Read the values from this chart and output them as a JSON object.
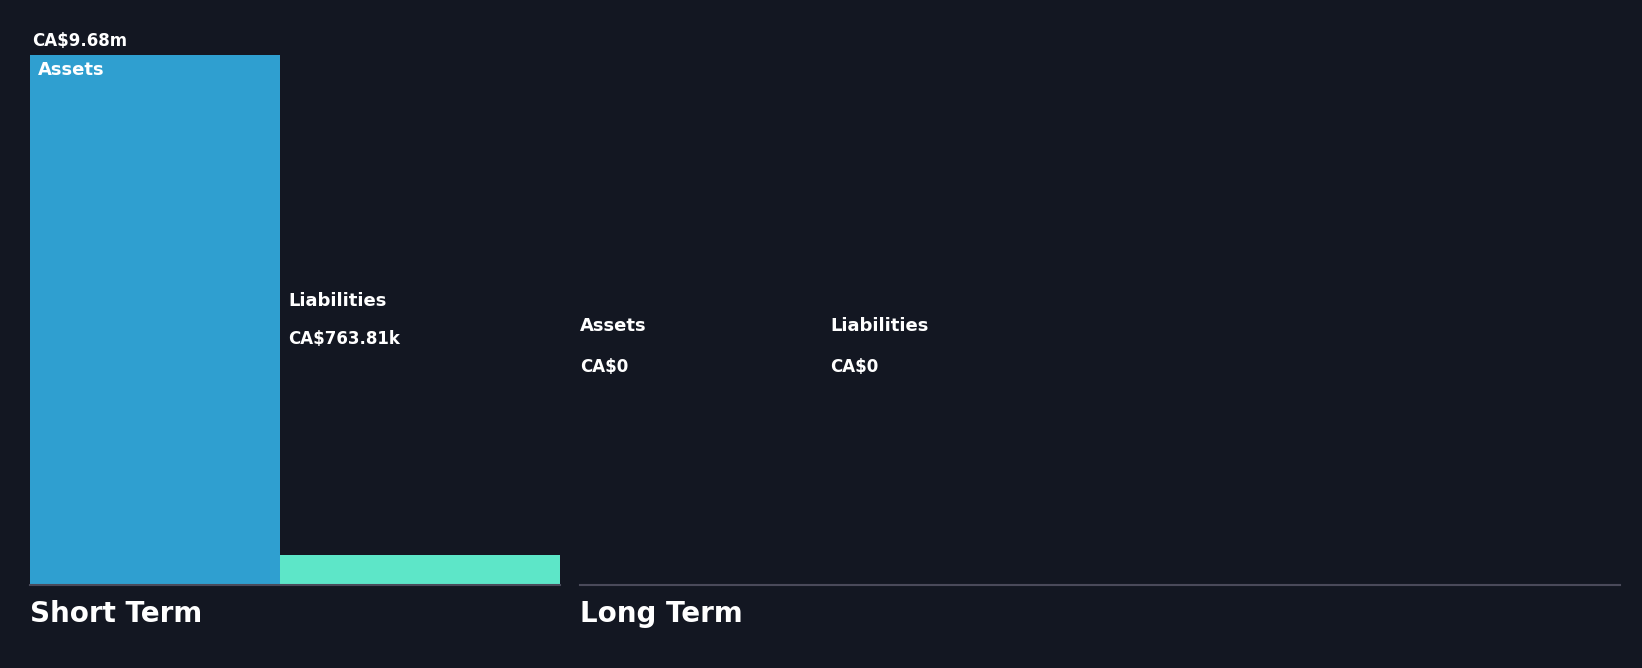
{
  "bg_color": "#131722",
  "short_term": {
    "assets_label": "Assets",
    "assets_value_label": "CA$9.68m",
    "assets_color": "#2f9fd0",
    "liabilities_label": "Liabilities",
    "liabilities_value_label": "CA$763.81k",
    "liabilities_color": "#5de6c8"
  },
  "long_term": {
    "assets_label": "Assets",
    "assets_value_label": "CA$0",
    "liabilities_label": "Liabilities",
    "liabilities_value_label": "CA$0"
  },
  "section_labels": [
    "Short Term",
    "Long Term"
  ],
  "text_color": "#ffffff",
  "divider_color": "#4a4a5a",
  "label_fontsize": 12,
  "section_fontsize": 20,
  "bar_label_fontsize": 13
}
